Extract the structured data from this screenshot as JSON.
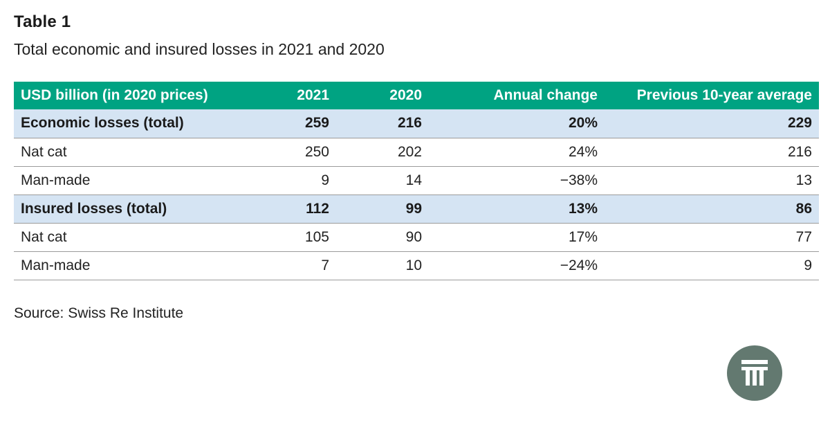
{
  "title": "Table 1",
  "subtitle": "Total economic and insured losses in 2021 and 2020",
  "table": {
    "headers": [
      "USD billion (in 2020 prices)",
      "2021",
      "2020",
      "Annual change",
      "Previous 10-year average"
    ],
    "rows": [
      {
        "label": "Economic losses (total)",
        "y2021": "259",
        "y2020": "216",
        "change": "20%",
        "avg": "229"
      },
      {
        "label": "Nat cat",
        "y2021": "250",
        "y2020": "202",
        "change": "24%",
        "avg": "216"
      },
      {
        "label": "Man-made",
        "y2021": "9",
        "y2020": "14",
        "change": "−38%",
        "avg": "13"
      },
      {
        "label": "Insured losses (total)",
        "y2021": "112",
        "y2020": "99",
        "change": "13%",
        "avg": "86"
      },
      {
        "label": "Nat cat",
        "y2021": "105",
        "y2020": "90",
        "change": "17%",
        "avg": "77"
      },
      {
        "label": "Man-made",
        "y2021": "7",
        "y2020": "10",
        "change": "−24%",
        "avg": "9"
      }
    ]
  },
  "source": "Source: Swiss Re Institute",
  "logo": {
    "icon": "swiss-re-logo-icon",
    "color": "#637970"
  },
  "colors": {
    "header_bg": "#00a382",
    "total_row_bg": "#d5e4f3"
  }
}
